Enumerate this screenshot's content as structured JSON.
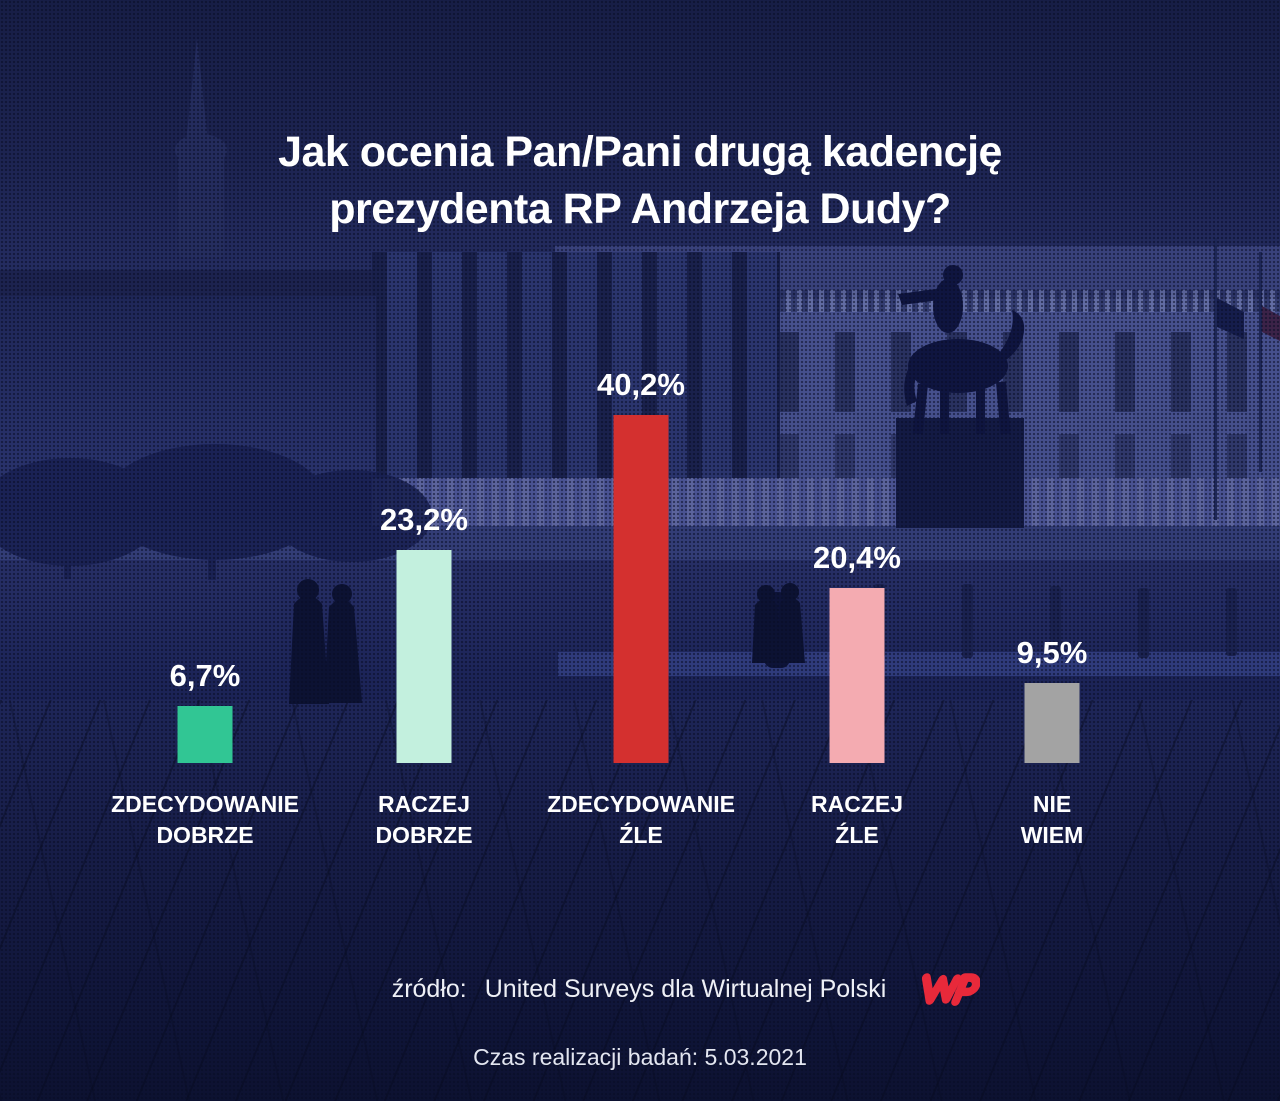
{
  "title": {
    "line1": "Jak ocenia Pan/Pani drugą kadencję",
    "line2": "prezydenta RP Andrzeja Dudy?"
  },
  "chart_data": {
    "type": "bar",
    "title": "Jak ocenia Pan/Pani drugą kadencję prezydenta RP Andrzeja Dudy?",
    "categories": [
      "ZDECYDOWANIE DOBRZE",
      "RACZEJ DOBRZE",
      "ZDECYDOWANIE ŹLE",
      "RACZEJ ŹLE",
      "NIE WIEM"
    ],
    "values": [
      6.7,
      23.2,
      40.2,
      20.4,
      9.5
    ],
    "value_labels": [
      "6,7%",
      "23,2%",
      "40,2%",
      "20,4%",
      "9,5%"
    ],
    "bar_colors": [
      "#31c694",
      "#c3f0de",
      "#d4302f",
      "#f4abb1",
      "#a3a3a3"
    ],
    "unit": "%",
    "ylim": [
      0,
      45
    ],
    "grid": false,
    "legend": "none",
    "value_label_position": "above-bar",
    "category_label_position": "below-bar"
  },
  "footer": {
    "source_label": "źródło:",
    "source_value": "United Surveys dla Wirtualnej Polski",
    "logo_name": "Wirtualna Polska",
    "survey_info": "Czas realizacji badań: 5.03.2021"
  },
  "colors": {
    "background_navy": "#1c234f",
    "text_white": "#ffffff",
    "wp_logo_red": "#e8293a"
  }
}
